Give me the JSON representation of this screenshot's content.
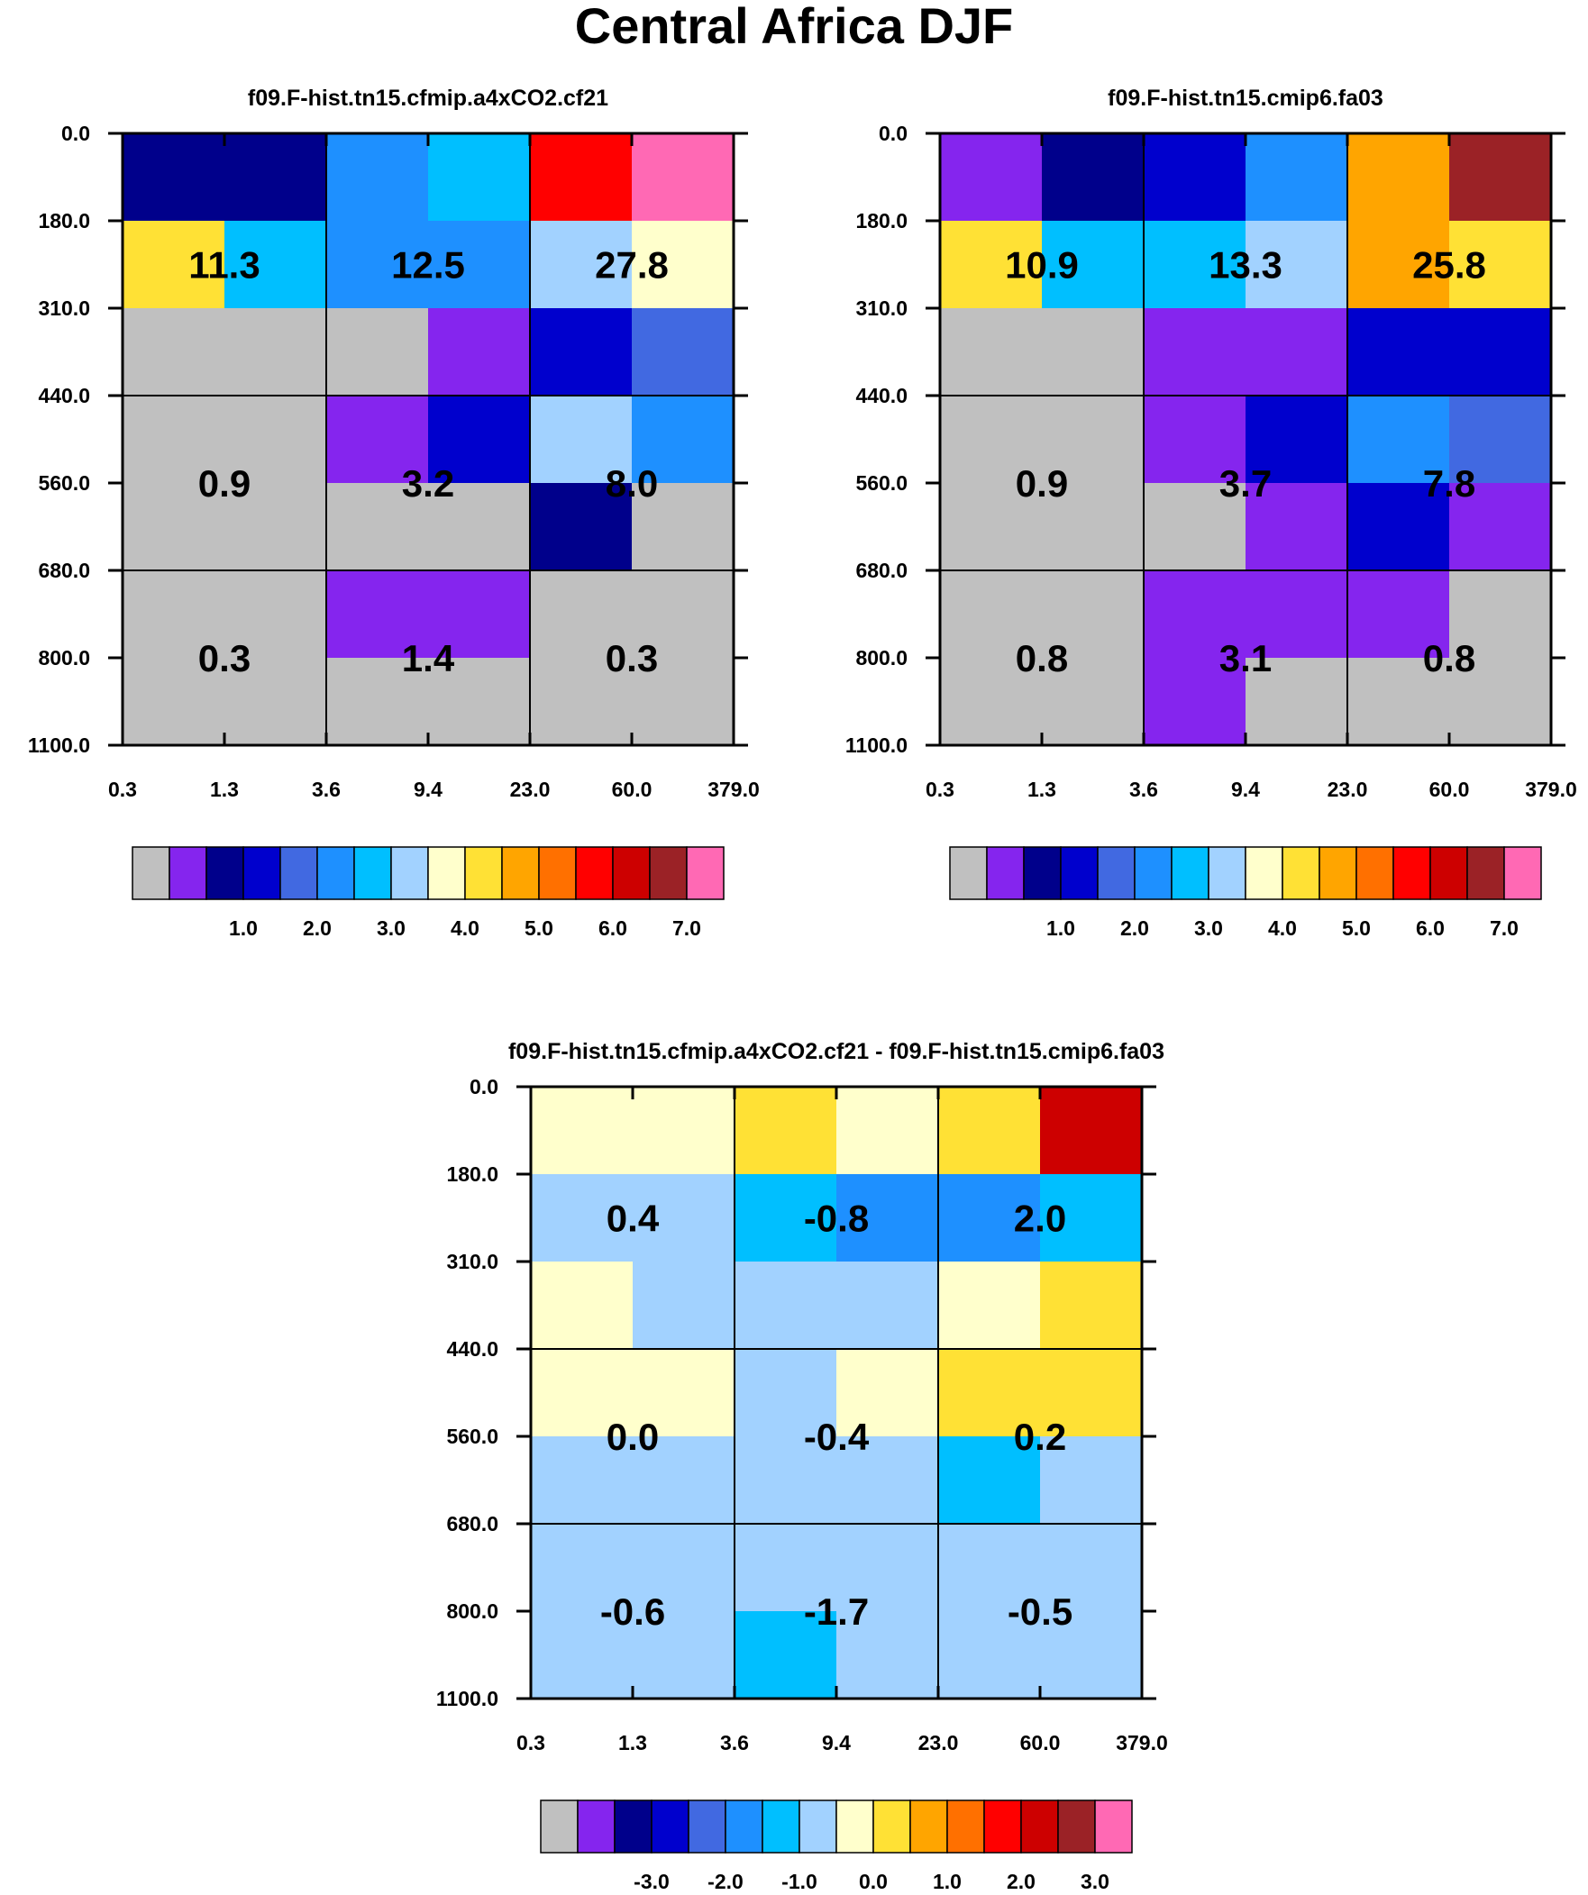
{
  "title": "Central Africa DJF",
  "palettes": {
    "absolute": [
      "#c0c0c0",
      "#8525ee",
      "#00008b",
      "#0000cd",
      "#4169e1",
      "#1e90ff",
      "#00bfff",
      "#a2d2ff",
      "#ffffcc",
      "#ffe135",
      "#ffa500",
      "#ff7000",
      "#ff0000",
      "#cd0000",
      "#9b2226",
      "#ff69b4"
    ],
    "difference": [
      "#c0c0c0",
      "#8525ee",
      "#00008b",
      "#0000cd",
      "#4169e1",
      "#1e90ff",
      "#00bfff",
      "#a2d2ff",
      "#ffffcc",
      "#ffe135",
      "#ffa500",
      "#ff7000",
      "#ff0000",
      "#cd0000",
      "#9b2226",
      "#ff69b4"
    ]
  },
  "chart_data": [
    {
      "type": "heatmap",
      "title": "f09.F-hist.tn15.cfmip.a4xCO2.cf21",
      "x_ticks": [
        "0.3",
        "1.3",
        "3.6",
        "9.4",
        "23.0",
        "60.0",
        "379.0"
      ],
      "y_ticks": [
        "0.0",
        "180.0",
        "310.0",
        "440.0",
        "560.0",
        "680.0",
        "800.0",
        "1100.0"
      ],
      "cells": [
        [
          2,
          2,
          5,
          6,
          12,
          15
        ],
        [
          9,
          6,
          5,
          5,
          7,
          8
        ],
        [
          0,
          0,
          0,
          1,
          3,
          4
        ],
        [
          0,
          0,
          1,
          3,
          7,
          5
        ],
        [
          0,
          0,
          0,
          0,
          2,
          0
        ],
        [
          0,
          0,
          1,
          1,
          0,
          0
        ],
        [
          0,
          0,
          0,
          0,
          0,
          0
        ]
      ],
      "box_totals": [
        [
          "11.3",
          "12.5",
          "27.8"
        ],
        [
          "0.9",
          "3.2",
          "8.0"
        ],
        [
          "0.3",
          "1.4",
          "0.3"
        ]
      ],
      "colorbar": {
        "palette": "absolute",
        "labels": [
          "1.0",
          "2.0",
          "3.0",
          "4.0",
          "5.0",
          "6.0",
          "7.0"
        ]
      }
    },
    {
      "type": "heatmap",
      "title": "f09.F-hist.tn15.cmip6.fa03",
      "x_ticks": [
        "0.3",
        "1.3",
        "3.6",
        "9.4",
        "23.0",
        "60.0",
        "379.0"
      ],
      "y_ticks": [
        "0.0",
        "180.0",
        "310.0",
        "440.0",
        "560.0",
        "680.0",
        "800.0",
        "1100.0"
      ],
      "cells": [
        [
          1,
          2,
          3,
          5,
          10,
          14
        ],
        [
          9,
          6,
          6,
          7,
          10,
          9
        ],
        [
          0,
          0,
          1,
          1,
          3,
          3
        ],
        [
          0,
          0,
          1,
          3,
          5,
          4
        ],
        [
          0,
          0,
          0,
          1,
          3,
          1
        ],
        [
          0,
          0,
          1,
          1,
          1,
          0
        ],
        [
          0,
          0,
          1,
          0,
          0,
          0
        ]
      ],
      "box_totals": [
        [
          "10.9",
          "13.3",
          "25.8"
        ],
        [
          "0.9",
          "3.7",
          "7.8"
        ],
        [
          "0.8",
          "3.1",
          "0.8"
        ]
      ],
      "colorbar": {
        "palette": "absolute",
        "labels": [
          "1.0",
          "2.0",
          "3.0",
          "4.0",
          "5.0",
          "6.0",
          "7.0"
        ]
      }
    },
    {
      "type": "heatmap",
      "title": "f09.F-hist.tn15.cfmip.a4xCO2.cf21 - f09.F-hist.tn15.cmip6.fa03",
      "x_ticks": [
        "0.3",
        "1.3",
        "3.6",
        "9.4",
        "23.0",
        "60.0",
        "379.0"
      ],
      "y_ticks": [
        "0.0",
        "180.0",
        "310.0",
        "440.0",
        "560.0",
        "680.0",
        "800.0",
        "1100.0"
      ],
      "cells": [
        [
          8,
          8,
          9,
          8,
          9,
          13
        ],
        [
          7,
          7,
          6,
          5,
          5,
          6
        ],
        [
          8,
          7,
          7,
          7,
          8,
          9
        ],
        [
          8,
          8,
          7,
          8,
          9,
          9
        ],
        [
          7,
          7,
          7,
          7,
          6,
          7
        ],
        [
          7,
          7,
          7,
          7,
          7,
          7
        ],
        [
          7,
          7,
          6,
          7,
          7,
          7
        ]
      ],
      "box_totals": [
        [
          "0.4",
          "-0.8",
          "2.0"
        ],
        [
          "0.0",
          "-0.4",
          "0.2"
        ],
        [
          "-0.6",
          "-1.7",
          "-0.5"
        ]
      ],
      "colorbar": {
        "palette": "difference",
        "labels": [
          "-3.0",
          "-2.0",
          "-1.0",
          "0.0",
          "1.0",
          "2.0",
          "3.0"
        ]
      }
    }
  ]
}
